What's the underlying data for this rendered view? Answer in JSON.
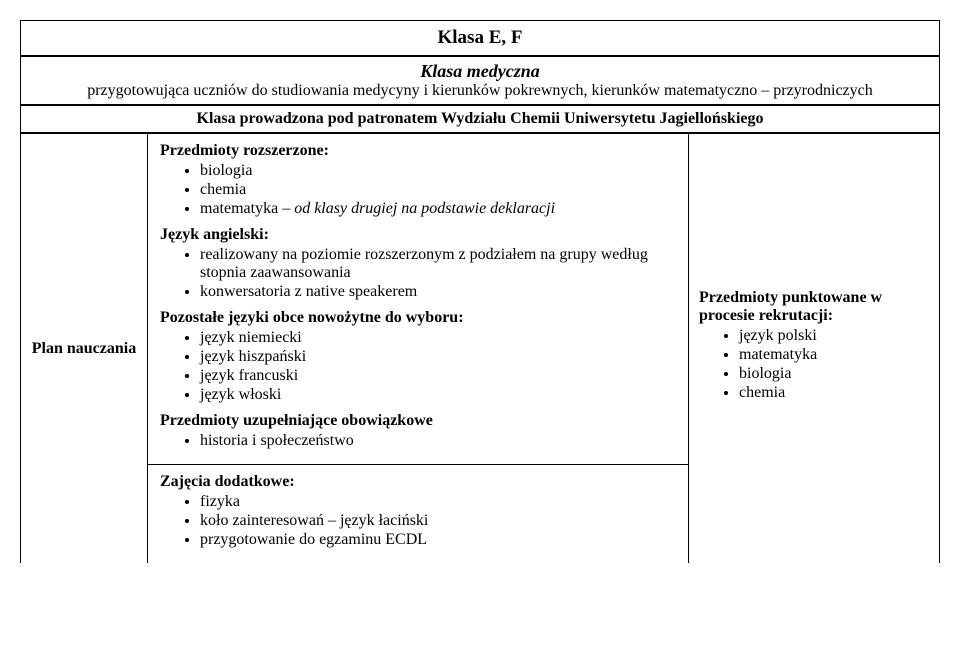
{
  "title": "Klasa E, F",
  "desc": {
    "heading": "Klasa medyczna",
    "line": "przygotowująca uczniów do studiowania medycyny i kierunków pokrewnych, kierunków matematyczno – przyrodniczych"
  },
  "patron": "Klasa prowadzona pod patronatem Wydziału Chemii Uniwersytetu Jagiellońskiego",
  "plan_label": "Plan nauczania",
  "left": {
    "rozszerzone_label": "Przedmioty rozszerzone:",
    "rozszerzone": [
      "biologia",
      "chemia"
    ],
    "rozszerzone_extra_prefix": "matematyka – ",
    "rozszerzone_extra_italic": "od klasy drugiej na podstawie deklaracji",
    "angielski_label": "Język angielski:",
    "angielski": [
      "realizowany na poziomie rozszerzonym z podziałem na grupy według stopnia zaawansowania",
      "konwersatoria z native speakerem"
    ],
    "obce_label": "Pozostałe języki obce nowożytne do wyboru:",
    "obce": [
      "język niemiecki",
      "język hiszpański",
      "język francuski",
      "język włoski"
    ],
    "uzup_label": "Przedmioty uzupełniające obowiązkowe",
    "uzup": [
      "historia i społeczeństwo"
    ],
    "dodatkowe_label": "Zajęcia dodatkowe:",
    "dodatkowe": [
      "fizyka",
      "koło zainteresowań – język łaciński",
      "przygotowanie do egzaminu ECDL"
    ]
  },
  "right": {
    "heading": "Przedmioty punktowane w procesie rekrutacji:",
    "items": [
      "język polski",
      "matematyka",
      "biologia",
      "chemia"
    ]
  }
}
